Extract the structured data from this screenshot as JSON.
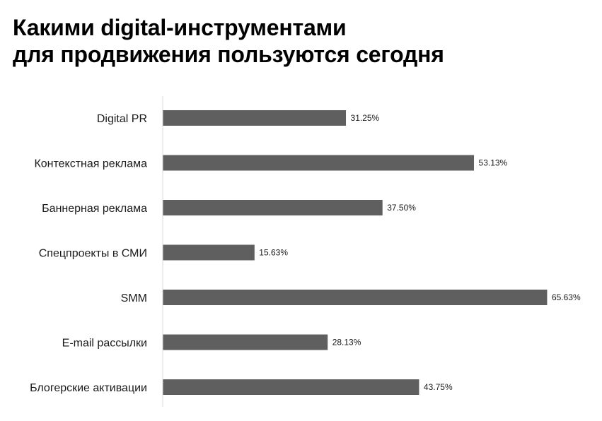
{
  "title": {
    "line1": "Какими digital-инструментами",
    "line2": "для продвижения пользуются сегодня"
  },
  "colors": {
    "bar": "#5f5f5f",
    "axis": "#d9d9d9",
    "text": "#1a1a1a"
  },
  "chart_data": {
    "type": "bar",
    "orientation": "horizontal",
    "title": "Какими digital-инструментами для продвижения пользуются сегодня",
    "categories": [
      "Digital PR",
      "Контекстная реклама",
      "Баннерная реклама",
      "Спецпроекты в СМИ",
      "SMM",
      "E-mail рассылки",
      "Блогерские активации"
    ],
    "values": [
      31.25,
      53.13,
      37.5,
      15.63,
      65.63,
      28.13,
      43.75
    ],
    "data_labels": [
      "31.25%",
      "53.13%",
      "37.50%",
      "15.63%",
      "65.63%",
      "28.13%",
      "43.75%"
    ],
    "unit": "%",
    "xlim": [
      0,
      66
    ],
    "grid": false,
    "legend": "none"
  }
}
